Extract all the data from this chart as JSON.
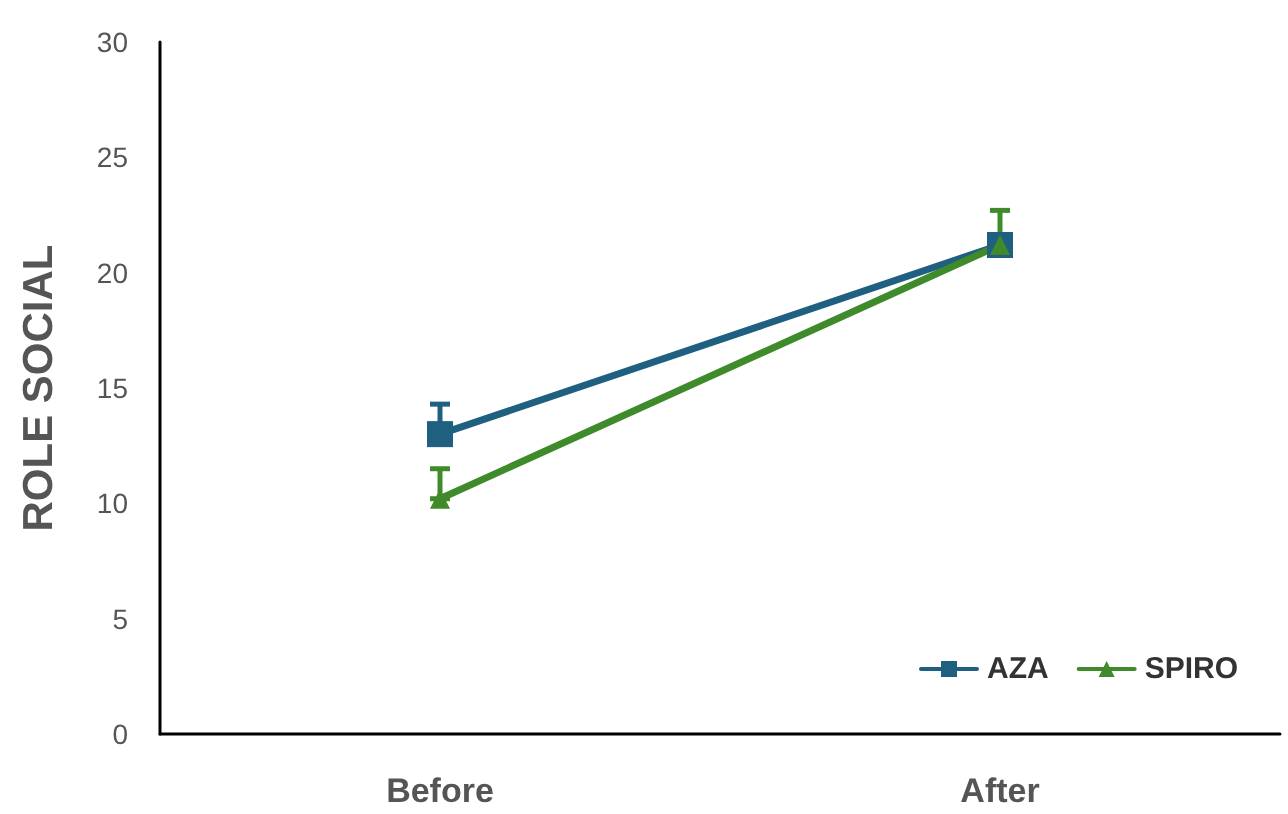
{
  "chart_data": {
    "type": "line",
    "ylabel": "ROLE SOCIAL",
    "categories": [
      "Before",
      "After"
    ],
    "series": [
      {
        "name": "AZA",
        "color": "#1f5f80",
        "marker": "square",
        "values": [
          13.0,
          21.2
        ],
        "errors": [
          [
            13.0,
            14.3
          ],
          null
        ]
      },
      {
        "name": "SPIRO",
        "color": "#3f8a2a",
        "marker": "triangle",
        "values": [
          10.2,
          21.2
        ],
        "errors": [
          [
            10.2,
            11.5
          ],
          [
            21.2,
            22.7
          ]
        ]
      }
    ],
    "ylim": [
      0,
      30
    ],
    "yticks": [
      0,
      5,
      10,
      15,
      20,
      25,
      30
    ],
    "grid": false,
    "legend": "bottom right",
    "line_style": "solid"
  }
}
